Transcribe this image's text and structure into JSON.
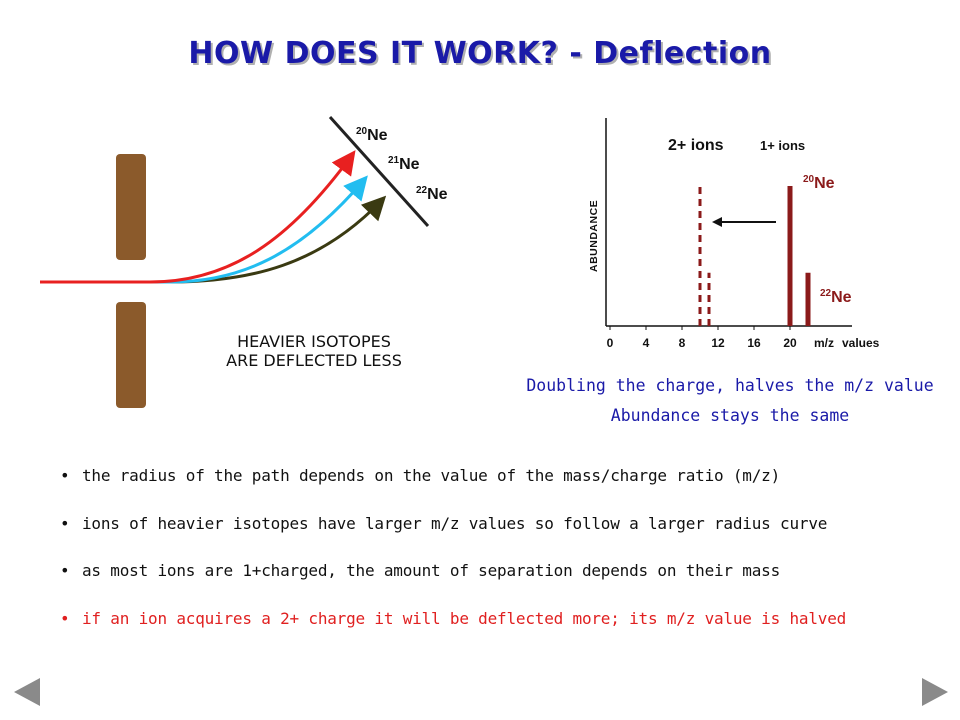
{
  "title": "HOW DOES IT WORK? - Deflection",
  "left_diagram": {
    "isotopes": [
      {
        "mass": "20",
        "symbol": "Ne",
        "color": "#e82020"
      },
      {
        "mass": "21",
        "symbol": "Ne",
        "color": "#22bdf0"
      },
      {
        "mass": "22",
        "symbol": "Ne",
        "color": "#3a3a12"
      }
    ],
    "plate_color": "#8b5a2b",
    "caption_line1": "HEAVIER ISOTOPES",
    "caption_line2": "ARE DEFLECTED LESS"
  },
  "spectrum": {
    "ylabel": "ABUNDANCE",
    "xticks": [
      "0",
      "4",
      "8",
      "12",
      "16",
      "20"
    ],
    "xunit": "m/z",
    "xunit2": "values",
    "label_2plus": "2+ ions",
    "label_1plus": "1+ ions",
    "peaks": [
      {
        "mass": "20",
        "symbol": "Ne",
        "mz": 20,
        "relative_abundance": 1.0,
        "charge": "1+"
      },
      {
        "mass": "22",
        "symbol": "Ne",
        "mz": 22,
        "relative_abundance": 0.38,
        "charge": "1+"
      },
      {
        "mz": 10,
        "relative_abundance": 1.0,
        "charge": "2+"
      },
      {
        "mz": 11,
        "relative_abundance": 0.38,
        "charge": "2+"
      }
    ],
    "peak_color": "#8b1a1a"
  },
  "notes": [
    "Doubling the charge, halves the m/z value",
    "Abundance stays the same"
  ],
  "bullets": [
    "the radius of the path depends on the value of the mass/charge ratio (m/z)",
    "ions of heavier isotopes have larger m/z values so follow a larger radius curve",
    "as most ions are 1+charged, the amount of separation depends on their mass",
    "if an ion acquires a 2+ charge it will be deflected more; its m/z value is halved"
  ],
  "nav": {
    "prev": "previous-slide",
    "next": "next-slide"
  }
}
